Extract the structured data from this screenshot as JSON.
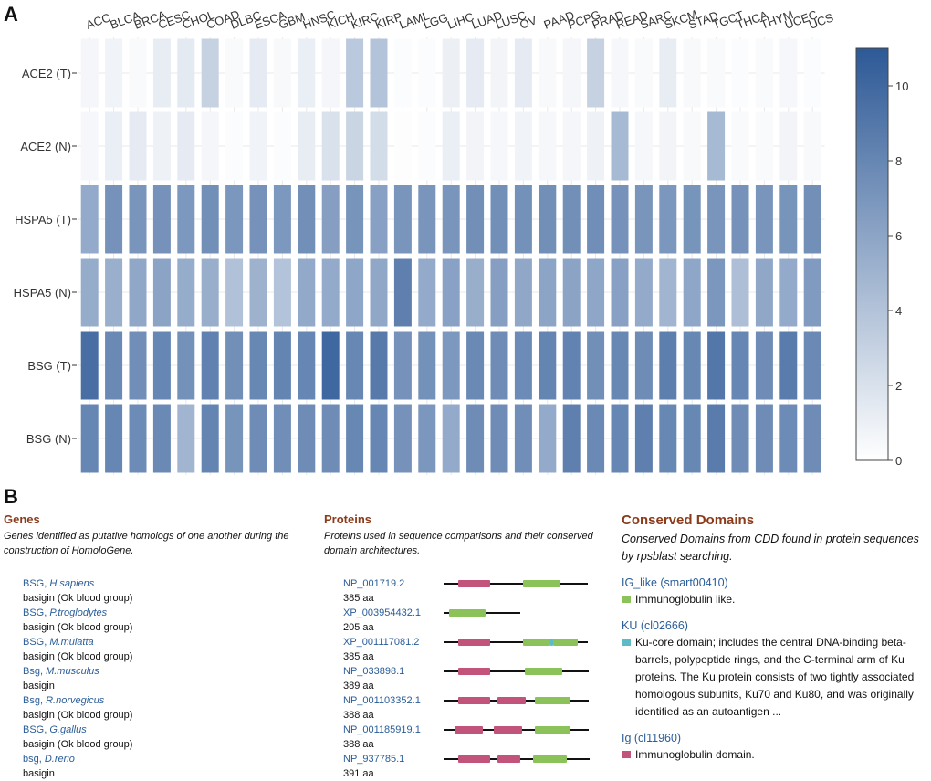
{
  "panel_labels": {
    "a": "A",
    "b": "B"
  },
  "chart_data": {
    "type": "heatmap",
    "title": "",
    "categories": [
      "ACC",
      "BLCA",
      "BRCA",
      "CESC",
      "CHOL",
      "COAD",
      "DLBC",
      "ESCA",
      "GBM",
      "HNSC",
      "KICH",
      "KIRC",
      "KIRP",
      "LAML",
      "LGG",
      "LIHC",
      "LUAD",
      "LUSC",
      "OV",
      "PAAD",
      "PCPG",
      "PRAD",
      "READ",
      "SARC",
      "SKCM",
      "STAD",
      "TGCT",
      "THCA",
      "THYM",
      "UCEC",
      "UCS"
    ],
    "rows": [
      "ACE2 (T)",
      "ACE2 (N)",
      "HSPA5 (T)",
      "HSPA5 (N)",
      "BSG (T)",
      "BSG (N)"
    ],
    "values": [
      [
        0.6,
        0.8,
        0.3,
        1.2,
        1.4,
        3.0,
        0.3,
        1.3,
        0.4,
        1.1,
        0.6,
        3.6,
        4.0,
        0.2,
        0.2,
        1.0,
        1.3,
        0.7,
        1.3,
        0.4,
        0.6,
        3.0,
        0.5,
        0.3,
        1.2,
        0.4,
        0.3,
        0.2,
        0.3,
        0.5,
        0.2
      ],
      [
        0.5,
        1.1,
        1.3,
        0.9,
        1.3,
        0.6,
        0.2,
        0.8,
        0.2,
        1.2,
        2.0,
        2.8,
        2.3,
        0.1,
        0.2,
        1.1,
        0.7,
        0.5,
        0.8,
        0.5,
        0.6,
        0.9,
        4.6,
        0.5,
        0.7,
        0.4,
        4.6,
        0.3,
        0.3,
        0.7,
        0.4
      ],
      [
        5.6,
        7.2,
        7.0,
        7.2,
        6.8,
        7.4,
        6.9,
        7.2,
        6.8,
        7.4,
        6.4,
        7.1,
        6.3,
        7.0,
        7.0,
        7.0,
        7.4,
        7.4,
        7.3,
        7.4,
        7.4,
        7.5,
        7.2,
        7.0,
        6.9,
        7.1,
        7.0,
        7.2,
        7.0,
        7.1,
        7.4
      ],
      [
        5.5,
        5.3,
        5.8,
        6.1,
        5.5,
        5.4,
        4.1,
        5.1,
        4.0,
        5.7,
        5.6,
        5.9,
        5.8,
        8.4,
        5.6,
        6.2,
        5.4,
        6.4,
        5.8,
        6.0,
        6.1,
        5.9,
        6.3,
        5.6,
        4.9,
        5.9,
        6.9,
        4.3,
        5.8,
        5.6,
        6.6
      ],
      [
        9.6,
        7.8,
        7.5,
        8.0,
        7.3,
        8.3,
        7.4,
        7.9,
        8.1,
        8.0,
        10.0,
        7.9,
        8.8,
        7.2,
        7.3,
        6.8,
        7.8,
        7.6,
        7.7,
        8.1,
        8.2,
        7.4,
        7.9,
        7.6,
        8.5,
        7.9,
        9.0,
        8.0,
        7.6,
        8.7,
        7.8
      ],
      [
        8.0,
        8.0,
        7.7,
        7.8,
        4.9,
        8.1,
        7.1,
        7.6,
        7.5,
        7.6,
        7.6,
        7.9,
        8.0,
        7.2,
        6.9,
        5.6,
        7.6,
        7.6,
        7.5,
        5.6,
        8.4,
        7.8,
        8.0,
        8.4,
        7.9,
        7.9,
        8.7,
        7.6,
        7.6,
        7.7,
        7.6
      ]
    ],
    "colorbar": {
      "min": 0,
      "max": 11,
      "ticks": [
        "0",
        "2",
        "4",
        "6",
        "8",
        "10"
      ],
      "tick_values": [
        0,
        2,
        4,
        6,
        8,
        10
      ],
      "color_low": "#ffffff",
      "color_high": "#2d5996"
    },
    "xlabel": "",
    "ylabel": ""
  },
  "genes": {
    "title": "Genes",
    "description": "Genes identified as putative homologs of one another during the construction of HomoloGene.",
    "items": [
      {
        "symbol": "BSG,",
        "organism": "H.sapiens",
        "desc": "basigin (Ok blood group)"
      },
      {
        "symbol": "BSG,",
        "organism": "P.troglodytes",
        "desc": "basigin (Ok blood group)"
      },
      {
        "symbol": "BSG,",
        "organism": "M.mulatta",
        "desc": "basigin (Ok blood group)"
      },
      {
        "symbol": "Bsg,",
        "organism": "M.musculus",
        "desc": "basigin"
      },
      {
        "symbol": "Bsg,",
        "organism": "R.norvegicus",
        "desc": "basigin (Ok blood group)"
      },
      {
        "symbol": "BSG,",
        "organism": "G.gallus",
        "desc": "basigin (Ok blood group)"
      },
      {
        "symbol": "bsg,",
        "organism": "D.rerio",
        "desc": "basigin"
      }
    ]
  },
  "proteins": {
    "title": "Proteins",
    "description": "Proteins used in sequence comparisons and their conserved domain architectures.",
    "colors": {
      "ig": "#c2537a",
      "ig_like": "#8bc35a",
      "ku": "#5bbcc8"
    },
    "items": [
      {
        "accession": "NP_001719.2",
        "length": "385 aa",
        "aa": 385,
        "domains": [
          {
            "type": "ig",
            "start": 40,
            "end": 125
          },
          {
            "type": "ig_like",
            "start": 212,
            "end": 312
          }
        ]
      },
      {
        "accession": "XP_003954432.1",
        "length": "205 aa",
        "aa": 205,
        "domains": [
          {
            "type": "ig_like",
            "start": 15,
            "end": 112
          }
        ]
      },
      {
        "accession": "XP_001117081.2",
        "length": "385 aa",
        "aa": 385,
        "domains": [
          {
            "type": "ig",
            "start": 40,
            "end": 125
          },
          {
            "type": "ig_like",
            "start": 212,
            "end": 287
          },
          {
            "type": "ku",
            "start": 287,
            "end": 294
          },
          {
            "type": "ig_like",
            "start": 294,
            "end": 360
          }
        ]
      },
      {
        "accession": "NP_033898.1",
        "length": "389 aa",
        "aa": 389,
        "domains": [
          {
            "type": "ig",
            "start": 40,
            "end": 125
          },
          {
            "type": "ig_like",
            "start": 218,
            "end": 318
          }
        ]
      },
      {
        "accession": "NP_001103352.1",
        "length": "388 aa",
        "aa": 388,
        "domains": [
          {
            "type": "ig",
            "start": 40,
            "end": 125
          },
          {
            "type": "ig",
            "start": 145,
            "end": 220
          },
          {
            "type": "ig_like",
            "start": 245,
            "end": 340
          }
        ]
      },
      {
        "accession": "NP_001185919.1",
        "length": "388 aa",
        "aa": 388,
        "domains": [
          {
            "type": "ig",
            "start": 30,
            "end": 105
          },
          {
            "type": "ig",
            "start": 135,
            "end": 210
          },
          {
            "type": "ig_like",
            "start": 245,
            "end": 340
          }
        ]
      },
      {
        "accession": "NP_937785.1",
        "length": "391 aa",
        "aa": 391,
        "domains": [
          {
            "type": "ig",
            "start": 40,
            "end": 125
          },
          {
            "type": "ig",
            "start": 145,
            "end": 205
          },
          {
            "type": "ig_like",
            "start": 240,
            "end": 330
          }
        ]
      }
    ]
  },
  "conserved_domains": {
    "title": "Conserved Domains",
    "description": "Conserved Domains from CDD found in protein sequences by rpsblast searching.",
    "items": [
      {
        "name": "IG_like (smart00410)",
        "text": "Immunoglobulin like.",
        "color": "#8bc35a"
      },
      {
        "name": "KU (cl02666)",
        "text": "Ku-core domain; includes the central DNA-binding beta-barrels, polypeptide rings, and the C-terminal arm of Ku proteins. The Ku protein consists of two tightly associated homologous subunits, Ku70 and Ku80, and was originally identified as an autoantigen ...",
        "color": "#5bbcc8"
      },
      {
        "name": "Ig (cl11960)",
        "text": "Immunoglobulin domain.",
        "color": "#c2537a"
      }
    ]
  }
}
